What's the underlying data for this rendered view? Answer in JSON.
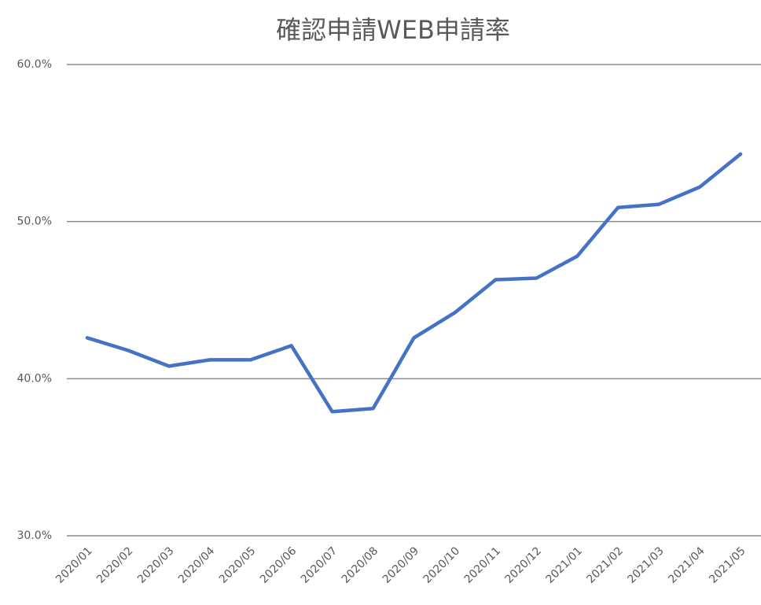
{
  "chart_data": {
    "type": "line",
    "title": "確認申請WEB申請率",
    "categories": [
      "2020/01",
      "2020/02",
      "2020/03",
      "2020/04",
      "2020/05",
      "2020/06",
      "2020/07",
      "2020/08",
      "2020/09",
      "2020/10",
      "2020/11",
      "2020/12",
      "2021/01",
      "2021/02",
      "2021/03",
      "2021/04",
      "2021/05"
    ],
    "series": [
      {
        "color": "#4472c4",
        "values": [
          42.6,
          41.8,
          40.8,
          41.2,
          41.2,
          42.1,
          37.9,
          38.1,
          42.6,
          44.2,
          46.3,
          46.4,
          47.8,
          50.9,
          51.1,
          52.2,
          54.3
        ]
      }
    ],
    "ylim": [
      30,
      60
    ],
    "yticks": [
      {
        "value": 30,
        "label": "30.0%"
      },
      {
        "value": 40,
        "label": "40.0%"
      },
      {
        "value": 50,
        "label": "50.0%"
      },
      {
        "value": 60,
        "label": "60.0%"
      }
    ],
    "grid": true
  }
}
